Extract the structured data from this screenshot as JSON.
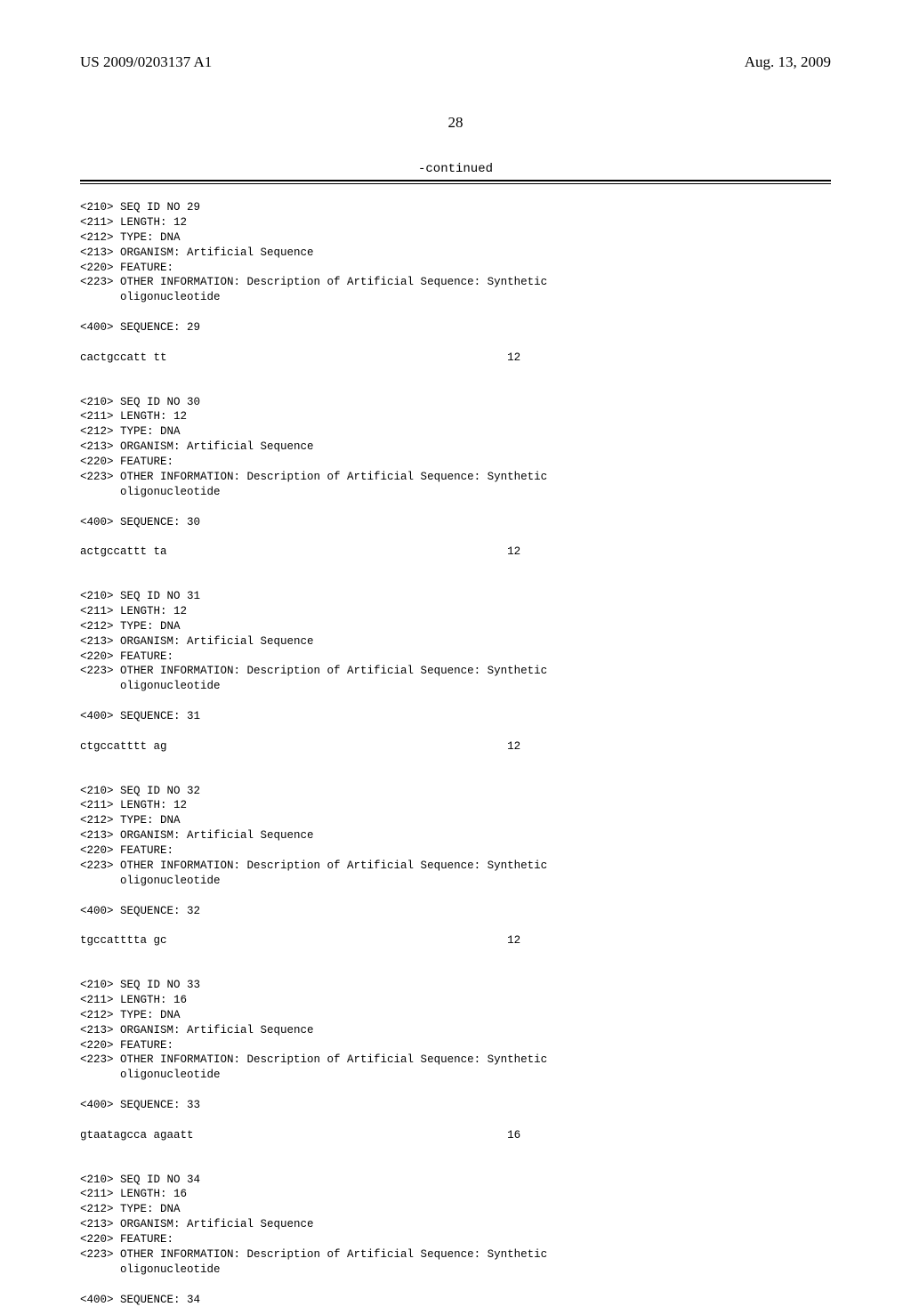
{
  "header": {
    "pub_number": "US 2009/0203137 A1",
    "pub_date": "Aug. 13, 2009"
  },
  "page_number": "28",
  "continued_label": "-continued",
  "sequences": [
    {
      "id_line": "<210> SEQ ID NO 29",
      "length_line": "<211> LENGTH: 12",
      "type_line": "<212> TYPE: DNA",
      "organism_line": "<213> ORGANISM: Artificial Sequence",
      "feature_line": "<220> FEATURE:",
      "other_info_line": "<223> OTHER INFORMATION: Description of Artificial Sequence: Synthetic",
      "other_info_cont": "      oligonucleotide",
      "sequence_header": "<400> SEQUENCE: 29",
      "sequence_text": "cactgccatt tt",
      "sequence_len": "12"
    },
    {
      "id_line": "<210> SEQ ID NO 30",
      "length_line": "<211> LENGTH: 12",
      "type_line": "<212> TYPE: DNA",
      "organism_line": "<213> ORGANISM: Artificial Sequence",
      "feature_line": "<220> FEATURE:",
      "other_info_line": "<223> OTHER INFORMATION: Description of Artificial Sequence: Synthetic",
      "other_info_cont": "      oligonucleotide",
      "sequence_header": "<400> SEQUENCE: 30",
      "sequence_text": "actgccattt ta",
      "sequence_len": "12"
    },
    {
      "id_line": "<210> SEQ ID NO 31",
      "length_line": "<211> LENGTH: 12",
      "type_line": "<212> TYPE: DNA",
      "organism_line": "<213> ORGANISM: Artificial Sequence",
      "feature_line": "<220> FEATURE:",
      "other_info_line": "<223> OTHER INFORMATION: Description of Artificial Sequence: Synthetic",
      "other_info_cont": "      oligonucleotide",
      "sequence_header": "<400> SEQUENCE: 31",
      "sequence_text": "ctgccatttt ag",
      "sequence_len": "12"
    },
    {
      "id_line": "<210> SEQ ID NO 32",
      "length_line": "<211> LENGTH: 12",
      "type_line": "<212> TYPE: DNA",
      "organism_line": "<213> ORGANISM: Artificial Sequence",
      "feature_line": "<220> FEATURE:",
      "other_info_line": "<223> OTHER INFORMATION: Description of Artificial Sequence: Synthetic",
      "other_info_cont": "      oligonucleotide",
      "sequence_header": "<400> SEQUENCE: 32",
      "sequence_text": "tgccatttta gc",
      "sequence_len": "12"
    },
    {
      "id_line": "<210> SEQ ID NO 33",
      "length_line": "<211> LENGTH: 16",
      "type_line": "<212> TYPE: DNA",
      "organism_line": "<213> ORGANISM: Artificial Sequence",
      "feature_line": "<220> FEATURE:",
      "other_info_line": "<223> OTHER INFORMATION: Description of Artificial Sequence: Synthetic",
      "other_info_cont": "      oligonucleotide",
      "sequence_header": "<400> SEQUENCE: 33",
      "sequence_text": "gtaatagcca agaatt",
      "sequence_len": "16"
    },
    {
      "id_line": "<210> SEQ ID NO 34",
      "length_line": "<211> LENGTH: 16",
      "type_line": "<212> TYPE: DNA",
      "organism_line": "<213> ORGANISM: Artificial Sequence",
      "feature_line": "<220> FEATURE:",
      "other_info_line": "<223> OTHER INFORMATION: Description of Artificial Sequence: Synthetic",
      "other_info_cont": "      oligonucleotide",
      "sequence_header": "<400> SEQUENCE: 34",
      "sequence_text": "",
      "sequence_len": ""
    }
  ]
}
